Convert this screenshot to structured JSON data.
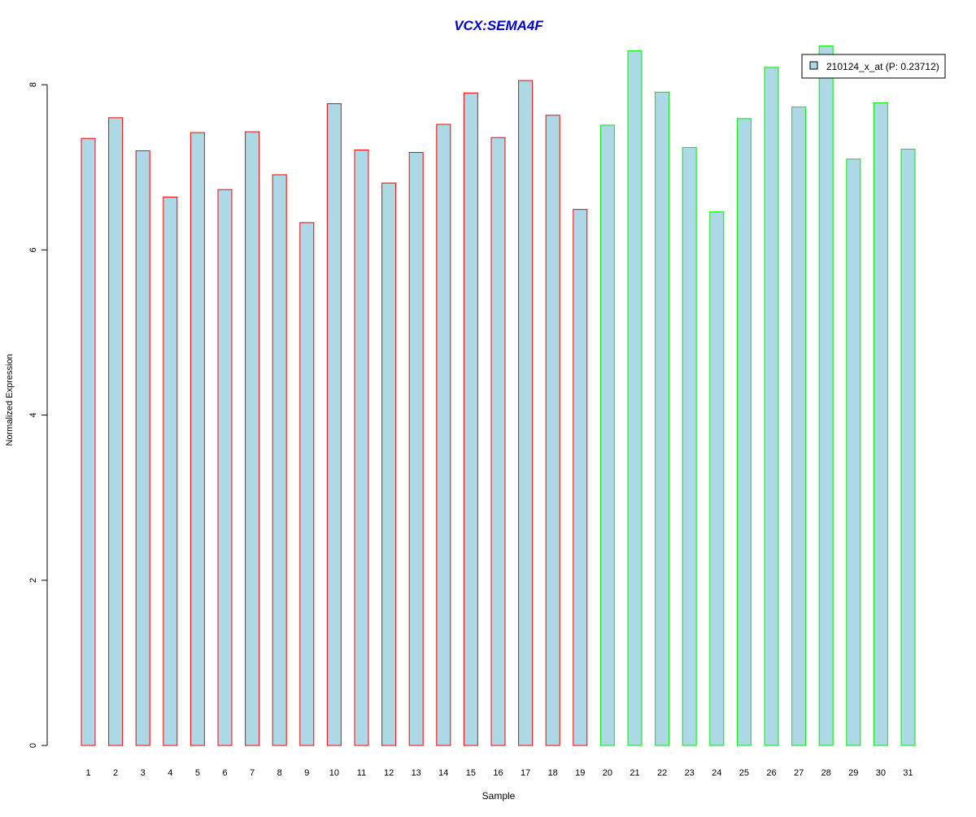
{
  "chart_data": {
    "type": "bar",
    "title": "VCX:SEMA4F",
    "xlabel": "Sample",
    "ylabel": "Normalized Expression",
    "ylim": [
      0,
      8.4
    ],
    "yticks": [
      "0",
      "2",
      "4",
      "6",
      "8"
    ],
    "grid": false,
    "legend": {
      "placement": "top-right",
      "label": "210124_x_at (P: 0.23712)"
    },
    "categories": [
      "1",
      "2",
      "3",
      "4",
      "5",
      "6",
      "7",
      "8",
      "9",
      "10",
      "11",
      "12",
      "13",
      "14",
      "15",
      "16",
      "17",
      "18",
      "19",
      "20",
      "21",
      "22",
      "23",
      "24",
      "25",
      "26",
      "27",
      "28",
      "29",
      "30",
      "31"
    ],
    "values": [
      7.35,
      7.6,
      7.2,
      6.64,
      7.42,
      6.73,
      7.43,
      6.91,
      6.33,
      7.77,
      7.21,
      6.81,
      7.18,
      7.52,
      7.9,
      7.36,
      8.05,
      7.63,
      6.49,
      7.51,
      8.41,
      7.91,
      7.24,
      6.46,
      7.59,
      8.21,
      7.73,
      8.47,
      7.1,
      7.78,
      7.22
    ],
    "groups": [
      1,
      1,
      1,
      1,
      1,
      1,
      1,
      1,
      1,
      1,
      1,
      1,
      1,
      1,
      1,
      1,
      1,
      1,
      1,
      2,
      2,
      2,
      2,
      2,
      2,
      2,
      2,
      2,
      2,
      2,
      2
    ],
    "colors": {
      "fill": "#add8e6",
      "group1_border": "#ff0000",
      "group2_border": "#00ee00",
      "title": "#0000cc",
      "axis": "#000000",
      "text": "#000000"
    }
  }
}
